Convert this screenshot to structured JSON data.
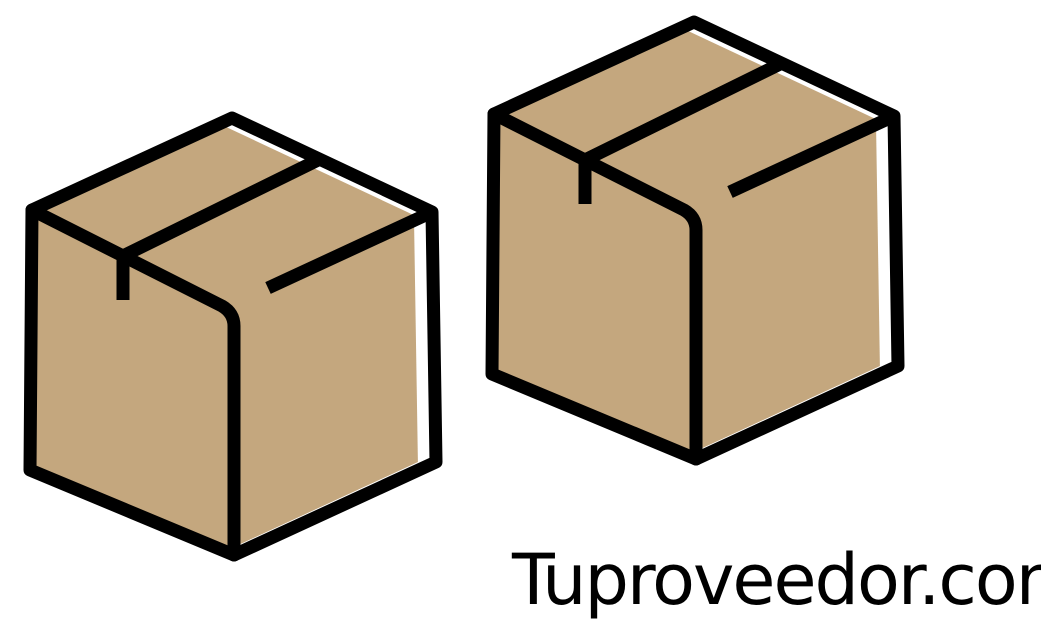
{
  "brand": {
    "text": "Tuproveedor.com"
  },
  "illustration": {
    "icon": "cardboard-box-icon",
    "count": 2,
    "box_fill": "#c4a77e",
    "outline": "#000000",
    "background": "#ffffff"
  }
}
